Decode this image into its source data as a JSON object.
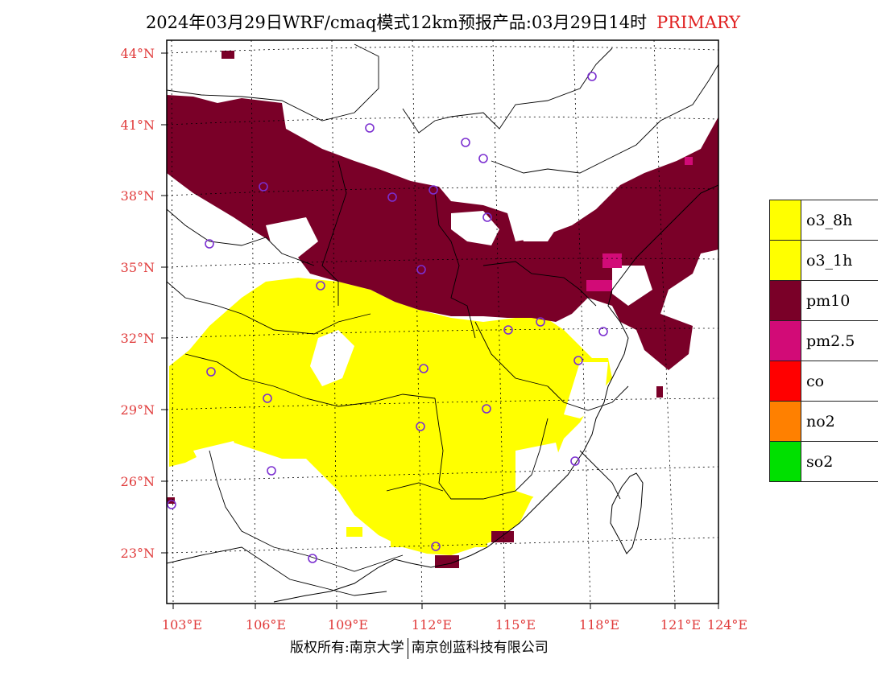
{
  "header": {
    "title": "2024年03月29日WRF/cmaq模式12km预报产品:03月29日14时",
    "tag": "PRIMARY"
  },
  "axes": {
    "lat_labels": [
      "44°N",
      "41°N",
      "38°N",
      "35°N",
      "32°N",
      "29°N",
      "26°N",
      "23°N"
    ],
    "lon_labels": [
      "103°E",
      "106°E",
      "109°E",
      "112°E",
      "115°E",
      "118°E",
      "121°E",
      "124°E"
    ],
    "label_color": "#e03a3a"
  },
  "legend": {
    "items": [
      {
        "label": "o3_8h",
        "color": "#ffff00"
      },
      {
        "label": "o3_1h",
        "color": "#ffff00"
      },
      {
        "label": "pm10",
        "color": "#7a0028"
      },
      {
        "label": "pm2.5",
        "color": "#d20b77"
      },
      {
        "label": "co",
        "color": "#ff0000"
      },
      {
        "label": "no2",
        "color": "#ff8000"
      },
      {
        "label": "so2",
        "color": "#00e000"
      }
    ]
  },
  "footer": {
    "copyright": "版权所有:南京大学",
    "company": "南京创蓝科技有限公司"
  },
  "colors": {
    "pm10": "#7a0028",
    "pm2_5": "#d20b77",
    "o3": "#ffff00",
    "station": "#7b2fd0",
    "border": "#000000"
  },
  "icons": {
    "station_marker": "circle-outline"
  }
}
